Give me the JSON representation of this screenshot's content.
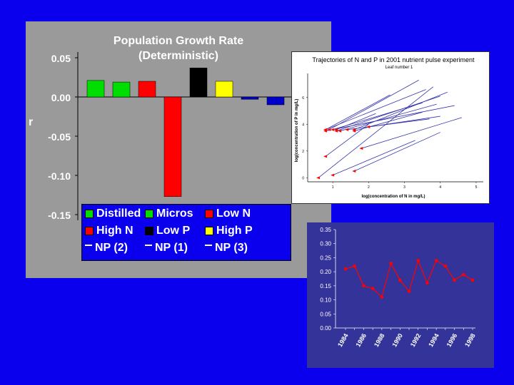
{
  "chart_data": [
    {
      "type": "bar",
      "title": "Population Growth Rate",
      "subtitle": "(Deterministic)",
      "ylabel": "r",
      "yticks": [
        "0.05",
        "0.00",
        "-0.05",
        "-0.10",
        "-0.15"
      ],
      "ylim": [
        -0.15,
        0.05
      ],
      "categories": [
        "Distilled",
        "Micros",
        "Low N",
        "High N",
        "Low P",
        "High P",
        "NP (2)",
        "NP (1)",
        "NP (3)"
      ],
      "values": [
        0.021,
        0.019,
        0.02,
        -0.127,
        0.037,
        0.02,
        -0.003,
        -0.01,
        0.0
      ],
      "colors": [
        "#00dd00",
        "#00dd00",
        "#ff0000",
        "#ff0000",
        "#000000",
        "#ffff00",
        "#0000cc",
        "#0000cc",
        "#0000cc"
      ],
      "legend": [
        {
          "label": "Distilled",
          "color": "#00dd00",
          "marker": "square"
        },
        {
          "label": "Micros",
          "color": "#00dd00",
          "marker": "square"
        },
        {
          "label": "Low N",
          "color": "#ff0000",
          "marker": "square"
        },
        {
          "label": "High N",
          "color": "#ff0000",
          "marker": "square"
        },
        {
          "label": "Low P",
          "color": "#000000",
          "marker": "square"
        },
        {
          "label": "High P",
          "color": "#ffff00",
          "marker": "square"
        },
        {
          "label": "NP (2)",
          "color": "#0000cc",
          "marker": "dash"
        },
        {
          "label": "NP (1)",
          "color": "#0000cc",
          "marker": "dash"
        },
        {
          "label": "NP (3)",
          "color": "#0000cc",
          "marker": "dash"
        }
      ]
    },
    {
      "type": "line",
      "title": "Trajectories of N and P in 2001 nutrient pulse experiment",
      "subtitle": "Leaf number 1",
      "xlabel": "log(concentration of N in mg/L)",
      "ylabel": "log(concentration of P in mg/L)",
      "xticks": [
        "1",
        "2",
        "3",
        "4",
        "5"
      ],
      "yticks": [
        "0",
        "2",
        "4",
        "6"
      ],
      "xlim": [
        0.3,
        5.2
      ],
      "ylim": [
        -0.3,
        7.8
      ],
      "series": [
        {
          "values": [
            [
              0.6,
              0.0
            ],
            [
              3.8,
              6.8
            ]
          ]
        },
        {
          "values": [
            [
              0.8,
              3.6
            ],
            [
              3.6,
              6.6
            ]
          ]
        },
        {
          "values": [
            [
              0.8,
              3.5
            ],
            [
              4.4,
              5.4
            ]
          ]
        },
        {
          "values": [
            [
              0.9,
              3.6
            ],
            [
              3.4,
              7.3
            ]
          ]
        },
        {
          "values": [
            [
              0.8,
              3.6
            ],
            [
              2.6,
              6.2
            ]
          ]
        },
        {
          "values": [
            [
              1.0,
              3.6
            ],
            [
              3.5,
              5.6
            ]
          ]
        },
        {
          "values": [
            [
              1.1,
              3.5
            ],
            [
              4.0,
              6.1
            ]
          ]
        },
        {
          "values": [
            [
              1.1,
              3.6
            ],
            [
              2.2,
              4.8
            ]
          ]
        },
        {
          "values": [
            [
              1.2,
              3.5
            ],
            [
              3.9,
              5.5
            ]
          ]
        },
        {
          "values": [
            [
              1.6,
              3.6
            ],
            [
              4.2,
              6.4
            ]
          ]
        },
        {
          "values": [
            [
              1.4,
              3.6
            ],
            [
              3.7,
              4.4
            ]
          ]
        },
        {
          "values": [
            [
              1.6,
              3.5
            ],
            [
              3.5,
              4.9
            ]
          ]
        },
        {
          "values": [
            [
              2.0,
              3.8
            ],
            [
              4.0,
              4.6
            ]
          ]
        },
        {
          "values": [
            [
              1.8,
              2.2
            ],
            [
              4.6,
              4.5
            ]
          ]
        },
        {
          "values": [
            [
              1.6,
              0.5
            ],
            [
              4.0,
              3.4
            ]
          ]
        },
        {
          "values": [
            [
              1.0,
              0.2
            ],
            [
              3.3,
              2.8
            ]
          ]
        },
        {
          "values": [
            [
              0.8,
              1.6
            ],
            [
              2.0,
              4.0
            ]
          ]
        }
      ],
      "line_color": "#3333aa",
      "marker_color": "#ff0000"
    },
    {
      "type": "line",
      "categories": [
        "1984",
        "1985",
        "1986",
        "1987",
        "1988",
        "1989",
        "1990",
        "1991",
        "1992",
        "1993",
        "1994",
        "1995",
        "1996",
        "1997",
        "1998"
      ],
      "xtick_labels": [
        "1984",
        "1986",
        "1988",
        "1990",
        "1992",
        "1994",
        "1996",
        "1998"
      ],
      "series": [
        {
          "values": [
            0.21,
            0.22,
            0.15,
            0.14,
            0.11,
            0.23,
            0.17,
            0.13,
            0.24,
            0.16,
            0.24,
            0.22,
            0.17,
            0.19,
            0.17
          ],
          "color": "#ff0000"
        }
      ],
      "yticks": [
        "0.00",
        "0.05",
        "0.10",
        "0.15",
        "0.20",
        "0.25",
        "0.30",
        "0.35"
      ],
      "ylim": [
        0,
        0.35
      ]
    }
  ]
}
